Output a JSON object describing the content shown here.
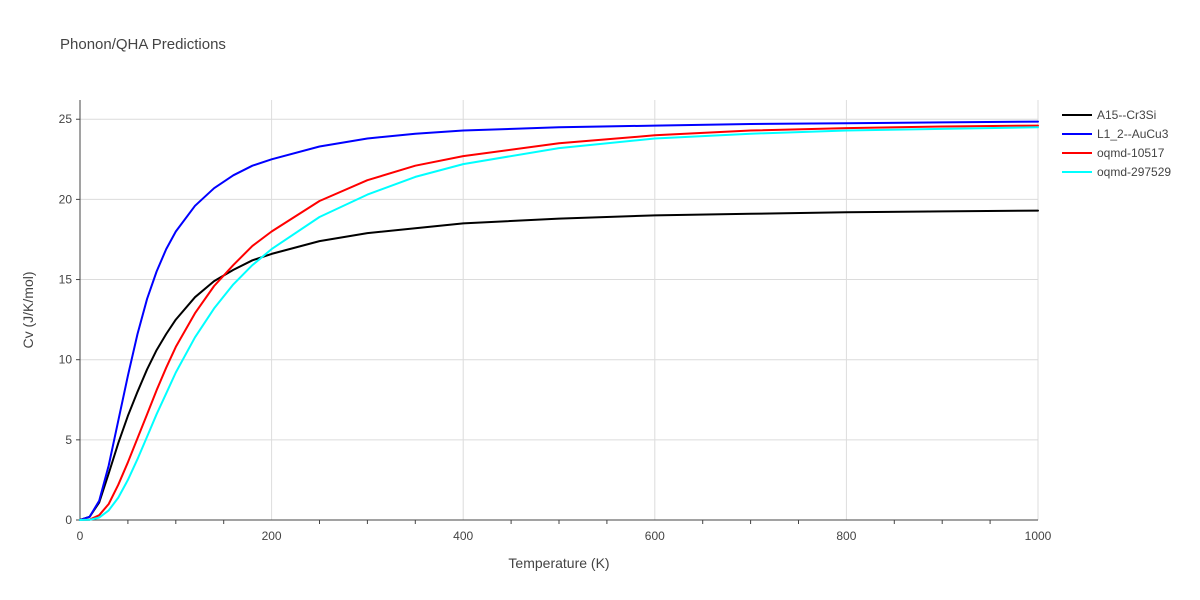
{
  "chart_data": {
    "type": "line",
    "title": "Phonon/QHA Predictions",
    "xlabel": "Temperature (K)",
    "ylabel": "Cv (J/K/mol)",
    "xlim": [
      0,
      1000
    ],
    "ylim": [
      0,
      26.2
    ],
    "x_ticks": [
      0,
      200,
      400,
      600,
      800,
      1000
    ],
    "y_ticks": [
      0,
      5,
      10,
      15,
      20,
      25
    ],
    "grid": true,
    "legend_position": "top-right",
    "series": [
      {
        "name": "A15--Cr3Si",
        "color": "#000000",
        "points": [
          [
            0,
            0
          ],
          [
            10,
            0.2
          ],
          [
            20,
            1.1
          ],
          [
            30,
            2.9
          ],
          [
            40,
            4.8
          ],
          [
            50,
            6.5
          ],
          [
            60,
            8.0
          ],
          [
            70,
            9.4
          ],
          [
            80,
            10.6
          ],
          [
            90,
            11.6
          ],
          [
            100,
            12.5
          ],
          [
            120,
            13.9
          ],
          [
            140,
            14.9
          ],
          [
            160,
            15.6
          ],
          [
            180,
            16.2
          ],
          [
            200,
            16.6
          ],
          [
            250,
            17.4
          ],
          [
            300,
            17.9
          ],
          [
            350,
            18.2
          ],
          [
            400,
            18.5
          ],
          [
            500,
            18.8
          ],
          [
            600,
            19.0
          ],
          [
            700,
            19.1
          ],
          [
            800,
            19.2
          ],
          [
            900,
            19.25
          ],
          [
            1000,
            19.3
          ]
        ]
      },
      {
        "name": "L1_2--AuCu3",
        "color": "#0000ff",
        "points": [
          [
            0,
            0
          ],
          [
            10,
            0.2
          ],
          [
            20,
            1.2
          ],
          [
            30,
            3.4
          ],
          [
            40,
            6.2
          ],
          [
            50,
            9.0
          ],
          [
            60,
            11.6
          ],
          [
            70,
            13.8
          ],
          [
            80,
            15.5
          ],
          [
            90,
            16.9
          ],
          [
            100,
            18.0
          ],
          [
            120,
            19.6
          ],
          [
            140,
            20.7
          ],
          [
            160,
            21.5
          ],
          [
            180,
            22.1
          ],
          [
            200,
            22.5
          ],
          [
            250,
            23.3
          ],
          [
            300,
            23.8
          ],
          [
            350,
            24.1
          ],
          [
            400,
            24.3
          ],
          [
            500,
            24.5
          ],
          [
            600,
            24.6
          ],
          [
            700,
            24.7
          ],
          [
            800,
            24.75
          ],
          [
            900,
            24.8
          ],
          [
            1000,
            24.85
          ]
        ]
      },
      {
        "name": "oqmd-10517",
        "color": "#ff0000",
        "points": [
          [
            0,
            0
          ],
          [
            10,
            0.02
          ],
          [
            20,
            0.3
          ],
          [
            30,
            1.0
          ],
          [
            40,
            2.2
          ],
          [
            50,
            3.6
          ],
          [
            60,
            5.1
          ],
          [
            70,
            6.6
          ],
          [
            80,
            8.1
          ],
          [
            90,
            9.5
          ],
          [
            100,
            10.8
          ],
          [
            120,
            12.9
          ],
          [
            140,
            14.6
          ],
          [
            160,
            15.9
          ],
          [
            180,
            17.1
          ],
          [
            200,
            18.0
          ],
          [
            250,
            19.9
          ],
          [
            300,
            21.2
          ],
          [
            350,
            22.1
          ],
          [
            400,
            22.7
          ],
          [
            500,
            23.5
          ],
          [
            600,
            24.0
          ],
          [
            700,
            24.3
          ],
          [
            800,
            24.45
          ],
          [
            900,
            24.55
          ],
          [
            1000,
            24.6
          ]
        ]
      },
      {
        "name": "oqmd-297529",
        "color": "#00ffff",
        "points": [
          [
            0,
            0
          ],
          [
            10,
            0.01
          ],
          [
            20,
            0.15
          ],
          [
            30,
            0.6
          ],
          [
            40,
            1.4
          ],
          [
            50,
            2.5
          ],
          [
            60,
            3.8
          ],
          [
            70,
            5.2
          ],
          [
            80,
            6.6
          ],
          [
            90,
            7.9
          ],
          [
            100,
            9.2
          ],
          [
            120,
            11.4
          ],
          [
            140,
            13.2
          ],
          [
            160,
            14.7
          ],
          [
            180,
            15.9
          ],
          [
            200,
            16.9
          ],
          [
            250,
            18.9
          ],
          [
            300,
            20.3
          ],
          [
            350,
            21.4
          ],
          [
            400,
            22.2
          ],
          [
            500,
            23.2
          ],
          [
            600,
            23.8
          ],
          [
            700,
            24.1
          ],
          [
            800,
            24.3
          ],
          [
            900,
            24.4
          ],
          [
            1000,
            24.5
          ]
        ]
      }
    ]
  }
}
